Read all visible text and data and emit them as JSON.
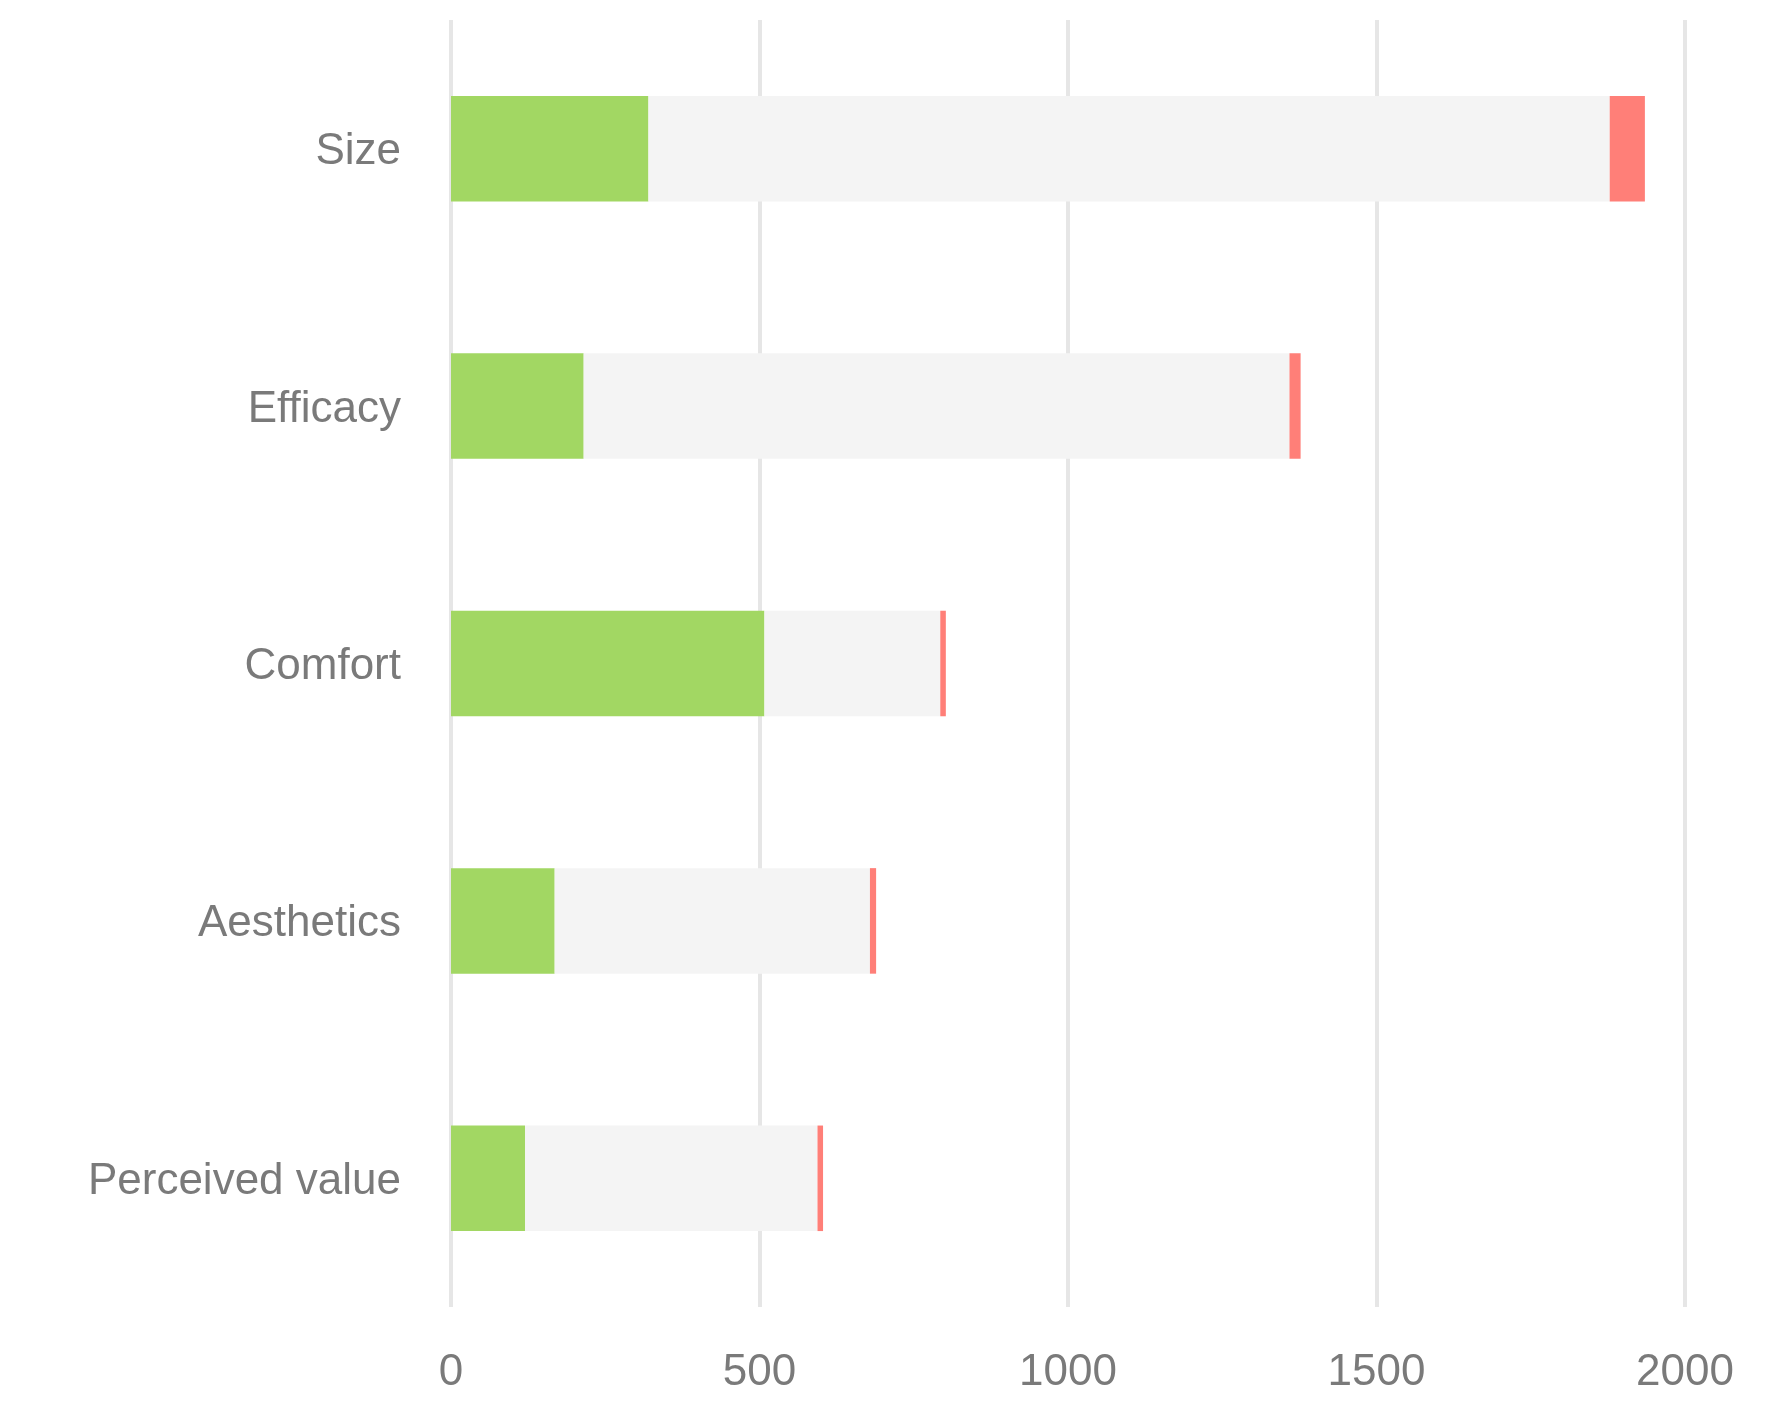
{
  "chart_data": {
    "type": "bar",
    "orientation": "horizontal",
    "stacked": true,
    "categories": [
      "Size",
      "Efficacy",
      "Comfort",
      "Aesthetics",
      "Perceived value"
    ],
    "series": [
      {
        "color": "#a2d763",
        "values": [
          320,
          215,
          508,
          168,
          120
        ]
      },
      {
        "color": "#f4f4f4",
        "values": [
          1558,
          1144,
          285,
          511,
          474
        ]
      },
      {
        "color": "#ff7f78",
        "values": [
          57,
          18,
          9,
          10,
          9
        ]
      }
    ],
    "xlim": [
      0,
      2000
    ],
    "xticks": [
      0,
      500,
      1000,
      1500,
      2000
    ],
    "grid": "x"
  }
}
